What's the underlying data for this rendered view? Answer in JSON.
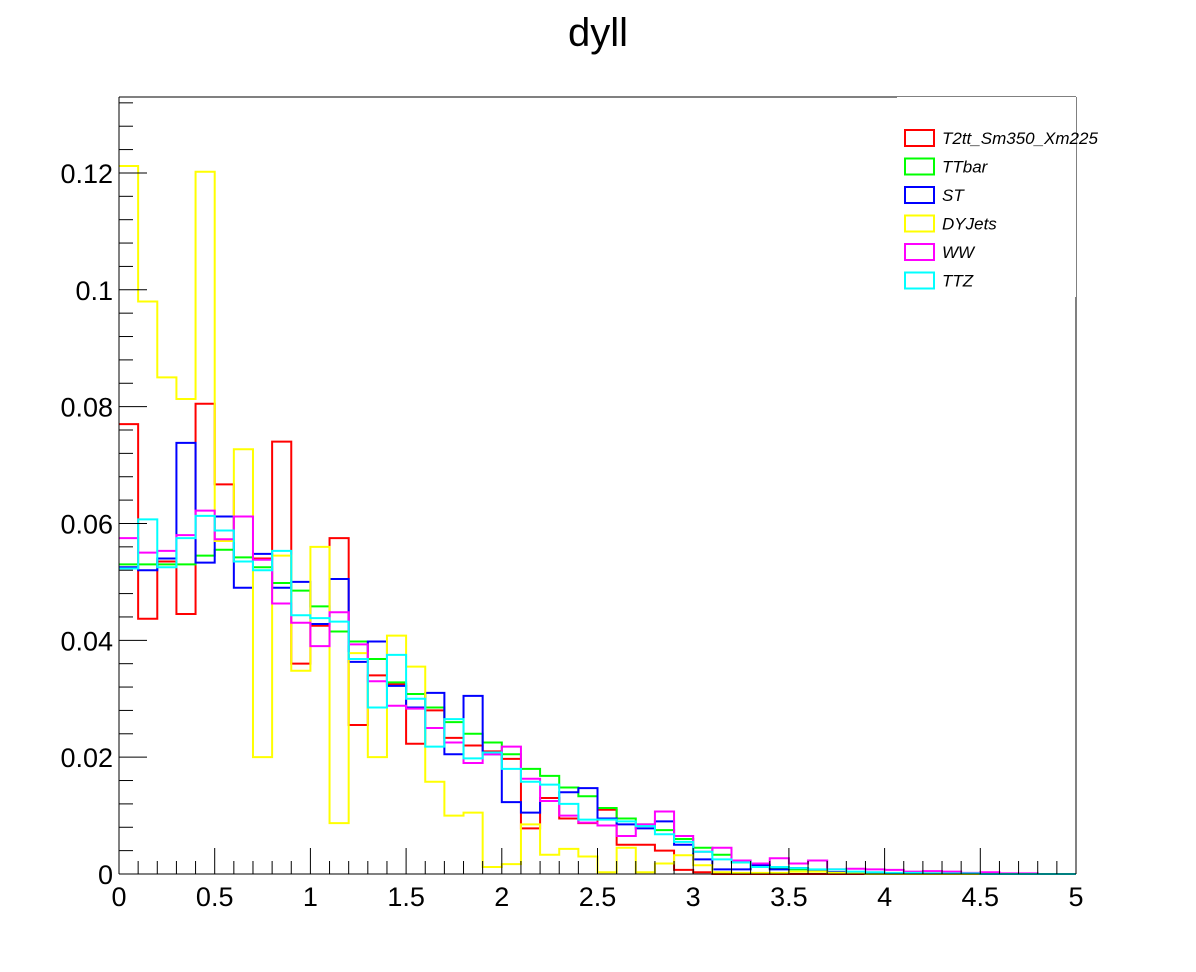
{
  "chart_data": {
    "type": "histogram",
    "title": "dyll",
    "xlabel": "",
    "ylabel": "",
    "xlim": [
      0,
      5
    ],
    "ylim": [
      0,
      0.133
    ],
    "bin_width": 0.1,
    "x_ticks": [
      {
        "v": 0,
        "label": "0"
      },
      {
        "v": 0.5,
        "label": "0.5"
      },
      {
        "v": 1,
        "label": "1"
      },
      {
        "v": 1.5,
        "label": "1.5"
      },
      {
        "v": 2,
        "label": "2"
      },
      {
        "v": 2.5,
        "label": "2.5"
      },
      {
        "v": 3,
        "label": "3"
      },
      {
        "v": 3.5,
        "label": "3.5"
      },
      {
        "v": 4,
        "label": "4"
      },
      {
        "v": 4.5,
        "label": "4.5"
      },
      {
        "v": 5,
        "label": "5"
      }
    ],
    "y_ticks": [
      {
        "v": 0,
        "label": "0"
      },
      {
        "v": 0.02,
        "label": "0.02"
      },
      {
        "v": 0.04,
        "label": "0.04"
      },
      {
        "v": 0.06,
        "label": "0.06"
      },
      {
        "v": 0.08,
        "label": "0.08"
      },
      {
        "v": 0.1,
        "label": "0.1"
      },
      {
        "v": 0.12,
        "label": "0.12"
      }
    ],
    "grid": false,
    "legend_position": "top-right",
    "series": [
      {
        "name": "T2tt_Sm350_Xm225",
        "color": "#ff0000",
        "values": [
          0.077,
          0.0437,
          0.0535,
          0.0445,
          0.0805,
          0.0667,
          0.0535,
          0.054,
          0.074,
          0.036,
          0.0425,
          0.0575,
          0.0255,
          0.034,
          0.0325,
          0.0223,
          0.028,
          0.0233,
          0.022,
          0.021,
          0.0197,
          0.0078,
          0.013,
          0.0095,
          0.0087,
          0.011,
          0.005,
          0.005,
          0.004,
          0.0007,
          0.0003,
          0,
          0,
          0,
          0,
          0,
          0,
          0,
          0,
          0,
          0,
          0,
          0,
          0,
          0,
          0,
          0,
          0,
          0,
          0
        ]
      },
      {
        "name": "TTbar",
        "color": "#00ff00",
        "values": [
          0.053,
          0.053,
          0.053,
          0.053,
          0.0545,
          0.0555,
          0.0542,
          0.0525,
          0.0498,
          0.0485,
          0.0458,
          0.0415,
          0.0398,
          0.0368,
          0.0328,
          0.0308,
          0.0285,
          0.026,
          0.024,
          0.0225,
          0.0205,
          0.018,
          0.0168,
          0.0148,
          0.0133,
          0.0113,
          0.0095,
          0.0085,
          0.0075,
          0.006,
          0.0045,
          0.0033,
          0.002,
          0.0016,
          0.0011,
          0.0008,
          0.0005,
          0.0003,
          0.0003,
          0.0002,
          0.0001,
          0.0001,
          0.0001,
          0,
          0,
          0,
          0,
          0,
          0,
          0
        ]
      },
      {
        "name": "ST",
        "color": "#0000ff",
        "values": [
          0.0525,
          0.052,
          0.054,
          0.0738,
          0.0533,
          0.0612,
          0.049,
          0.0548,
          0.049,
          0.05,
          0.0428,
          0.0505,
          0.0363,
          0.0398,
          0.0322,
          0.0285,
          0.031,
          0.0205,
          0.0305,
          0.0205,
          0.0123,
          0.0105,
          0.0125,
          0.014,
          0.0147,
          0.0095,
          0.0085,
          0.0078,
          0.009,
          0.005,
          0.0025,
          0.0008,
          0.0008,
          0.0015,
          0.0008,
          0.001,
          0.0005,
          0.0003,
          0.0002,
          0.0001,
          0.0001,
          0,
          0,
          0,
          0,
          0,
          0,
          0,
          0,
          0
        ]
      },
      {
        "name": "DYJets",
        "color": "#ffff00",
        "values": [
          0.1212,
          0.098,
          0.085,
          0.0813,
          0.1202,
          0.057,
          0.0727,
          0.02,
          0.0545,
          0.0348,
          0.056,
          0.0087,
          0.0378,
          0.02,
          0.0408,
          0.0355,
          0.0158,
          0.01,
          0.0105,
          0.0012,
          0.0017,
          0.0085,
          0.0033,
          0.0043,
          0.003,
          0.0003,
          0.0045,
          0.0003,
          0.0018,
          0.0032,
          0.0015,
          0.0003,
          0.0002,
          0.0002,
          0.0002,
          0.0004,
          0.0004,
          0.0002,
          0.0001,
          0,
          0,
          0,
          0,
          0,
          0,
          0,
          0,
          0,
          0,
          0
        ]
      },
      {
        "name": "WW",
        "color": "#ff00ff",
        "values": [
          0.0575,
          0.055,
          0.0553,
          0.058,
          0.0622,
          0.0573,
          0.0612,
          0.0538,
          0.0463,
          0.043,
          0.039,
          0.0448,
          0.0393,
          0.033,
          0.0288,
          0.0283,
          0.025,
          0.0225,
          0.019,
          0.0205,
          0.0218,
          0.0163,
          0.0125,
          0.01,
          0.0088,
          0.0083,
          0.0065,
          0.0085,
          0.0107,
          0.0065,
          0.0038,
          0.0045,
          0.0023,
          0.0018,
          0.0027,
          0.0018,
          0.0023,
          0.0008,
          0.0009,
          0.0008,
          0.0007,
          0.0004,
          0.0005,
          0.0004,
          0.0002,
          0.0003,
          0.0001,
          0.0001,
          0,
          0
        ]
      },
      {
        "name": "TTZ",
        "color": "#00ffff",
        "values": [
          0.0523,
          0.0607,
          0.0525,
          0.0575,
          0.0613,
          0.0588,
          0.0535,
          0.052,
          0.0553,
          0.0443,
          0.0438,
          0.0432,
          0.0368,
          0.0285,
          0.0375,
          0.03,
          0.0218,
          0.0265,
          0.0198,
          0.0208,
          0.018,
          0.0158,
          0.0153,
          0.012,
          0.0093,
          0.0093,
          0.009,
          0.0082,
          0.0068,
          0.0055,
          0.0038,
          0.0025,
          0.002,
          0.0012,
          0.0012,
          0.001,
          0.0008,
          0.0008,
          0.0004,
          0.0003,
          0.0002,
          0.0002,
          0.0001,
          0.0001,
          0.0001,
          0,
          0,
          0,
          0,
          0
        ]
      }
    ]
  }
}
